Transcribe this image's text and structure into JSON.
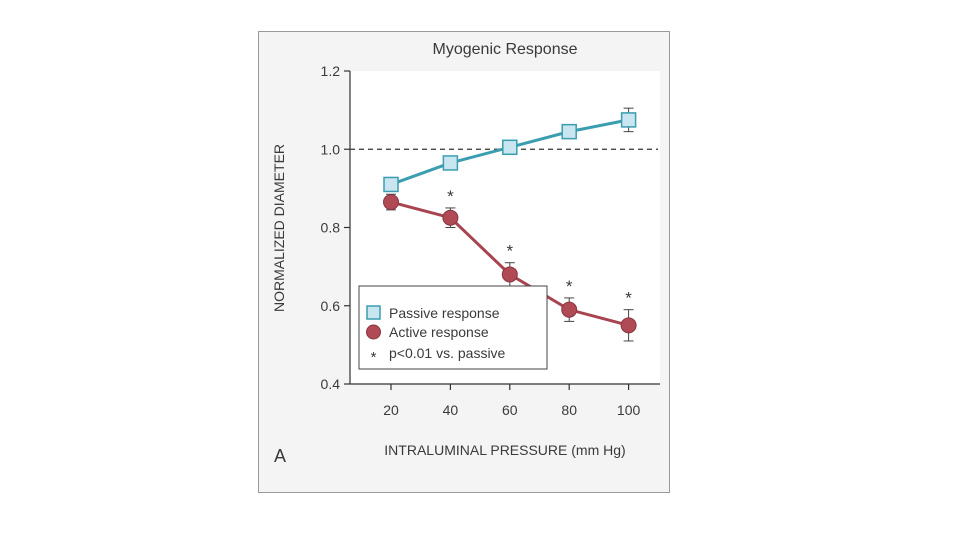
{
  "panel_label": "A",
  "chart_data": {
    "type": "line",
    "title": "Myogenic Response",
    "xlabel": "INTRALUMINAL PRESSURE (mm Hg)",
    "ylabel": "NORMALIZED DIAMETER",
    "x": [
      20,
      40,
      60,
      80,
      100
    ],
    "xticks": [
      "20",
      "40",
      "60",
      "80",
      "100"
    ],
    "yticks": [
      "0.4",
      "0.6",
      "0.8",
      "1.0",
      "1.2"
    ],
    "ylim": [
      0.4,
      1.2
    ],
    "xlim": [
      10,
      105
    ],
    "reference_line": {
      "y": 1.0,
      "style": "dashed"
    },
    "series": [
      {
        "name": "Passive response",
        "marker": "square",
        "color": "#3a9db0",
        "marker_fill": "#c9e6f0",
        "values": [
          0.91,
          0.965,
          1.005,
          1.045,
          1.075
        ],
        "error": [
          0.015,
          0.015,
          0.015,
          0.015,
          0.03
        ]
      },
      {
        "name": "Active response",
        "marker": "circle",
        "color": "#a8444f",
        "marker_fill": "#b04a55",
        "values": [
          0.865,
          0.825,
          0.68,
          0.59,
          0.55
        ],
        "error": [
          0.02,
          0.025,
          0.03,
          0.03,
          0.04
        ]
      }
    ],
    "significance": {
      "symbol": "*",
      "x": [
        40,
        60,
        80,
        100
      ],
      "label": "p<0.01 vs. passive"
    },
    "grid": false,
    "legend_position": "bottom-left"
  }
}
